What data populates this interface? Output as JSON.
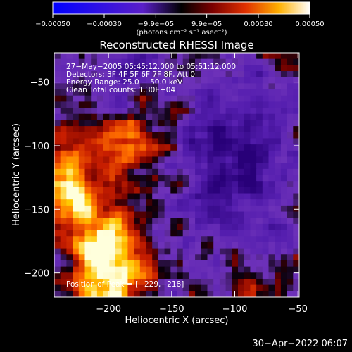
{
  "chart_data": {
    "type": "heatmap",
    "title": "Reconstructed RHESSI Image",
    "xlabel": "Heliocentric X (arcsec)",
    "ylabel": "Heliocentric Y (arcsec)",
    "xlim": [
      -243,
      -49
    ],
    "ylim": [
      -219,
      -27
    ],
    "xticks": [
      -200,
      -150,
      -100,
      -50
    ],
    "yticks": [
      -50,
      -100,
      -150,
      -200
    ],
    "xtick_labels": [
      "−200",
      "−150",
      "−100",
      "−50"
    ],
    "ytick_labels": [
      "−50",
      "−100",
      "−150",
      "−200"
    ],
    "colorbar": {
      "range": [
        -0.0005,
        0.0005
      ],
      "ticks": [
        -0.0005,
        -0.0003,
        -9.9e-05,
        9.9e-05,
        0.0003,
        0.0005
      ],
      "tick_labels": [
        "−0.00050",
        "−0.00030",
        "−9.9e−05",
        "9.9e−05",
        "0.00030",
        "0.00050"
      ],
      "units": "(photons cm⁻² s⁻¹ asec⁻²)"
    },
    "annotations": [
      "27−May−2005 05:45:12.000 to 05:51:12.000",
      "Detectors: 3F 4F 5F 6F 7F 8F, Att 0",
      "Energy Range: 25.0 − 50.0 keV",
      "Clean    Total counts: 1.30E+04"
    ],
    "peak_label": "Position of Peak = [−229,−218]",
    "peak": [
      -229,
      -218
    ],
    "grid": false,
    "colors": {
      "background": "#000000",
      "text": "#ffffff"
    }
  },
  "footer": {
    "date": "30−Apr−2022 06:07"
  }
}
